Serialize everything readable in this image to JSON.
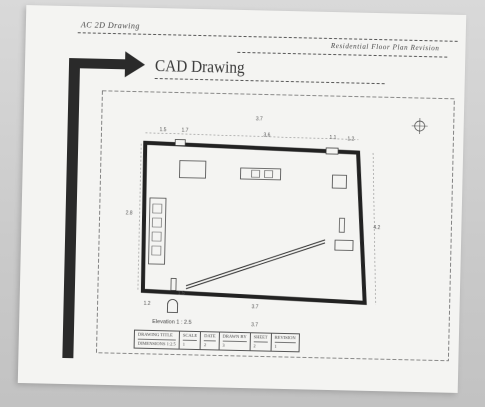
{
  "header": {
    "left_text": "AC  2D  Drawing",
    "right_text": "Residential Floor Plan Revision"
  },
  "drawing": {
    "title": "CAD Drawing",
    "scale_note": "Elevation 1 : 2.5"
  },
  "dimensions": {
    "top_center": "3.7",
    "top_inner": "3.6",
    "top_left_a": "1.5",
    "top_left_b": "1.7",
    "top_right_a": "1.1",
    "top_right_b": "1.2",
    "left_side": "2.8",
    "right_side": "4.2",
    "bottom_left": "1.2",
    "bottom_center": "3.7",
    "bottom_below": "3.7",
    "door_label": "1.5"
  },
  "title_block": {
    "cells": [
      {
        "top": "DRAWING TITLE",
        "bottom": "DIMENSIONS 1:2.5"
      },
      {
        "top": "SCALE",
        "bottom": "1"
      },
      {
        "top": "DATE",
        "bottom": "2"
      },
      {
        "top": "DRAWN BY",
        "bottom": "3"
      },
      {
        "top": "SHEET",
        "bottom": "2"
      },
      {
        "top": "REVISION",
        "bottom": "1"
      }
    ]
  },
  "colors": {
    "paper": "#f4f4f2",
    "ink": "#2b2b2b",
    "arrow": "#2a2a2a"
  },
  "icons": [
    "north-arrow-icon",
    "direction-arrow-icon"
  ]
}
